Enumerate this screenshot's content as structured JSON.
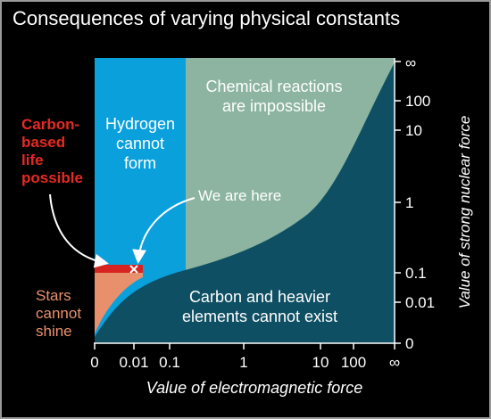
{
  "title": "Consequences of varying physical constants",
  "chart_data": {
    "type": "area",
    "title": "Consequences of varying physical constants",
    "xlabel": "Value of electromagnetic force",
    "ylabel": "Value of strong nuclear force",
    "x_ticks": [
      "0",
      "0.01",
      "0.1",
      "1",
      "10",
      "100",
      "∞"
    ],
    "y_ticks": [
      "0",
      "0.01",
      "0.1",
      "1",
      "10",
      "100",
      "∞"
    ],
    "regions": [
      {
        "label": [
          "Hydrogen",
          "cannot",
          "form"
        ],
        "color": "#0aa0dc"
      },
      {
        "label": [
          "Chemical reactions",
          "are impossible"
        ],
        "color": "#8cb4a0"
      },
      {
        "label": [
          "Carbon and heavier",
          "elements cannot exist"
        ],
        "color": "#0f4f63"
      },
      {
        "label": [
          "Stars",
          "cannot",
          "shine"
        ],
        "color": "#e8906c"
      },
      {
        "label": [
          "Carbon-",
          "based",
          "life",
          "possible"
        ],
        "color": "#d82420"
      }
    ],
    "annotations": [
      {
        "text": "We are here",
        "x": "0.01",
        "y": "0.1"
      }
    ],
    "axis_color": "#ffffff",
    "background": "#000000"
  }
}
